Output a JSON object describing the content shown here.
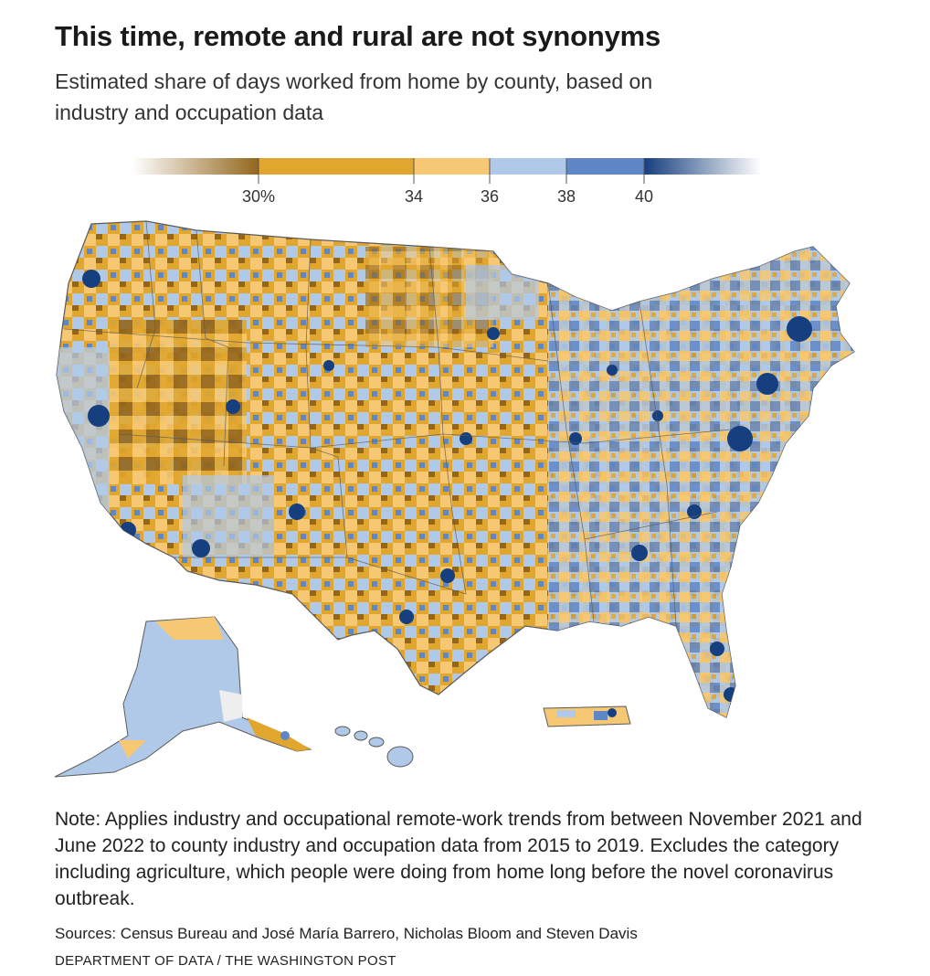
{
  "header": {
    "title": "This time, remote and rural are not synonyms",
    "subtitle": "Estimated share of days worked from home by county, based on industry and occupation data"
  },
  "legend": {
    "ticks": [
      {
        "label": "30%",
        "value": 30
      },
      {
        "label": "34",
        "value": 34
      },
      {
        "label": "36",
        "value": 36
      },
      {
        "label": "38",
        "value": 38
      },
      {
        "label": "40",
        "value": 40
      }
    ],
    "bins": [
      {
        "from": 30,
        "to": 34,
        "color": "#e0a62e"
      },
      {
        "from": 34,
        "to": 36,
        "color": "#f6c873"
      },
      {
        "from": 36,
        "to": 38,
        "color": "#b1c9e8"
      },
      {
        "from": 38,
        "to": 40,
        "color": "#5f86c6"
      }
    ],
    "low_color": "#93661c",
    "high_color": "#163f7f"
  },
  "map": {
    "regions": [
      "contiguous-us",
      "alaska",
      "hawaii",
      "puerto-rico"
    ],
    "colors": {
      "very_low": "#93661c",
      "low": "#e0a62e",
      "mid_low": "#f6c873",
      "mid_high": "#b1c9e8",
      "high": "#5f86c6",
      "very_high": "#163f7f",
      "border": "#5a5a5a"
    }
  },
  "footer": {
    "note": "Note: Applies industry and occupational remote-work trends from between November 2021 and June 2022 to county industry and occupation data from 2015 to 2019. Excludes the category including agriculture, which people were doing from home long before the novel coronavirus outbreak.",
    "sources": "Sources: Census Bureau and José María Barrero, Nicholas Bloom and Steven Davis",
    "credit": "DEPARTMENT OF DATA / THE WASHINGTON POST"
  }
}
